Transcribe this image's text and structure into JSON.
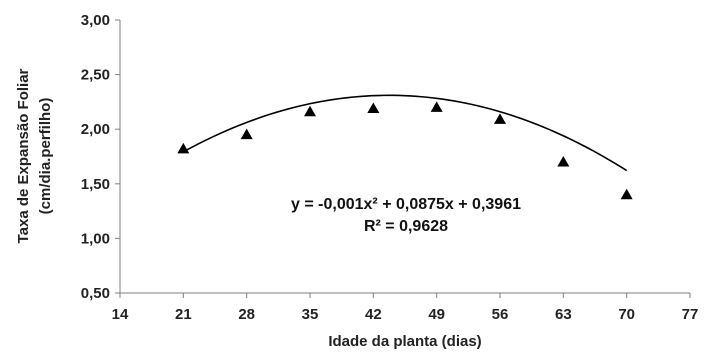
{
  "chart_data": {
    "type": "scatter",
    "xlabel": "Idade da planta (dias)",
    "ylabel": "Taxa de Expansão Foliar (cm/dia.perfilho)",
    "ylabel_lines": [
      "Taxa de Expansão Foliar",
      "(cm/dia.perfilho)"
    ],
    "xlim": [
      14,
      77
    ],
    "ylim": [
      0.5,
      3.0
    ],
    "x_ticks": [
      14,
      21,
      28,
      35,
      42,
      49,
      56,
      63,
      70,
      77
    ],
    "x_tick_labels": [
      "14",
      "21",
      "28",
      "35",
      "42",
      "49",
      "56",
      "63",
      "70",
      "77"
    ],
    "y_ticks": [
      0.5,
      1.0,
      1.5,
      2.0,
      2.5,
      3.0
    ],
    "y_tick_labels": [
      "0,50",
      "1,00",
      "1,50",
      "2,00",
      "2,50",
      "3,00"
    ],
    "grid": false,
    "legend": "none",
    "marker": "triangle",
    "marker_color": "#000000",
    "series": [
      {
        "x": [
          21,
          28,
          35,
          42,
          49,
          56,
          63,
          70
        ],
        "y": [
          1.82,
          1.95,
          2.16,
          2.19,
          2.2,
          2.09,
          1.7,
          1.4
        ]
      }
    ],
    "trendline": {
      "type": "polynomial",
      "coefficients": [
        -0.001,
        0.0875,
        0.3961
      ],
      "x_range": [
        21,
        70
      ],
      "color": "#000000"
    },
    "annotations": [
      "y = -0,001x² + 0,0875x + 0,3961",
      "R² = 0,9628"
    ]
  }
}
